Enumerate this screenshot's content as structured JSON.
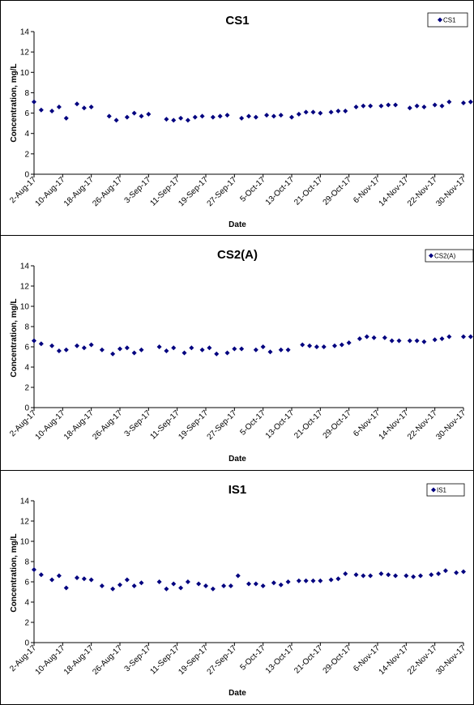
{
  "chart_data": [
    {
      "type": "scatter",
      "title": "CS1",
      "xlabel": "Date",
      "ylabel": "Concentration, mg/L",
      "ylim": [
        0,
        14
      ],
      "yticks": [
        0,
        2,
        4,
        6,
        8,
        10,
        12,
        14
      ],
      "xticks": [
        "2-Aug-17",
        "10-Aug-17",
        "18-Aug-17",
        "26-Aug-17",
        "3-Sep-17",
        "11-Sep-17",
        "19-Sep-17",
        "27-Sep-17",
        "5-Oct-17",
        "13-Oct-17",
        "21-Oct-17",
        "29-Oct-17",
        "6-Nov-17",
        "14-Nov-17",
        "22-Nov-17",
        "30-Nov-17"
      ],
      "xlim": [
        "2-Aug-17",
        "30-Nov-17"
      ],
      "legend": "top-right",
      "grid": false,
      "marker_color": "#00007f",
      "series": [
        {
          "name": "CS1",
          "x": [
            "2-Aug-17",
            "4-Aug-17",
            "7-Aug-17",
            "9-Aug-17",
            "11-Aug-17",
            "14-Aug-17",
            "16-Aug-17",
            "18-Aug-17",
            "23-Aug-17",
            "25-Aug-17",
            "28-Aug-17",
            "30-Aug-17",
            "1-Sep-17",
            "3-Sep-17",
            "8-Sep-17",
            "10-Sep-17",
            "12-Sep-17",
            "14-Sep-17",
            "16-Sep-17",
            "18-Sep-17",
            "21-Sep-17",
            "23-Sep-17",
            "25-Sep-17",
            "29-Sep-17",
            "1-Oct-17",
            "3-Oct-17",
            "6-Oct-17",
            "8-Oct-17",
            "10-Oct-17",
            "13-Oct-17",
            "15-Oct-17",
            "17-Oct-17",
            "19-Oct-17",
            "21-Oct-17",
            "24-Oct-17",
            "26-Oct-17",
            "28-Oct-17",
            "31-Oct-17",
            "2-Nov-17",
            "4-Nov-17",
            "7-Nov-17",
            "9-Nov-17",
            "11-Nov-17",
            "15-Nov-17",
            "17-Nov-17",
            "19-Nov-17",
            "22-Nov-17",
            "24-Nov-17",
            "26-Nov-17",
            "30-Nov-17",
            "2-Dec-17"
          ],
          "y": [
            7.1,
            6.3,
            6.2,
            6.6,
            5.5,
            6.9,
            6.5,
            6.6,
            5.7,
            5.3,
            5.6,
            6.0,
            5.7,
            5.9,
            5.4,
            5.3,
            5.5,
            5.3,
            5.6,
            5.7,
            5.6,
            5.7,
            5.8,
            5.5,
            5.7,
            5.6,
            5.8,
            5.7,
            5.8,
            5.6,
            5.9,
            6.1,
            6.1,
            6.0,
            6.1,
            6.2,
            6.2,
            6.6,
            6.7,
            6.7,
            6.7,
            6.8,
            6.8,
            6.5,
            6.7,
            6.6,
            6.8,
            6.7,
            7.1,
            7.0,
            7.1
          ]
        }
      ]
    },
    {
      "type": "scatter",
      "title": "CS2(A)",
      "xlabel": "Date",
      "ylabel": "Concentration, mg/L",
      "ylim": [
        0,
        14
      ],
      "yticks": [
        0,
        2,
        4,
        6,
        8,
        10,
        12,
        14
      ],
      "xticks": [
        "2-Aug-17",
        "10-Aug-17",
        "18-Aug-17",
        "26-Aug-17",
        "3-Sep-17",
        "11-Sep-17",
        "19-Sep-17",
        "27-Sep-17",
        "5-Oct-17",
        "13-Oct-17",
        "21-Oct-17",
        "29-Oct-17",
        "6-Nov-17",
        "14-Nov-17",
        "22-Nov-17",
        "30-Nov-17"
      ],
      "xlim": [
        "2-Aug-17",
        "30-Nov-17"
      ],
      "legend": "top-right",
      "grid": false,
      "marker_color": "#00007f",
      "series": [
        {
          "name": "CS2(A)",
          "x": [
            "2-Aug-17",
            "4-Aug-17",
            "7-Aug-17",
            "9-Aug-17",
            "11-Aug-17",
            "14-Aug-17",
            "16-Aug-17",
            "18-Aug-17",
            "21-Aug-17",
            "24-Aug-17",
            "26-Aug-17",
            "28-Aug-17",
            "30-Aug-17",
            "1-Sep-17",
            "6-Sep-17",
            "8-Sep-17",
            "10-Sep-17",
            "13-Sep-17",
            "15-Sep-17",
            "18-Sep-17",
            "20-Sep-17",
            "22-Sep-17",
            "25-Sep-17",
            "27-Sep-17",
            "29-Sep-17",
            "3-Oct-17",
            "5-Oct-17",
            "7-Oct-17",
            "10-Oct-17",
            "12-Oct-17",
            "16-Oct-17",
            "18-Oct-17",
            "20-Oct-17",
            "22-Oct-17",
            "25-Oct-17",
            "27-Oct-17",
            "29-Oct-17",
            "1-Nov-17",
            "3-Nov-17",
            "5-Nov-17",
            "8-Nov-17",
            "10-Nov-17",
            "12-Nov-17",
            "15-Nov-17",
            "17-Nov-17",
            "19-Nov-17",
            "22-Nov-17",
            "24-Nov-17",
            "26-Nov-17",
            "30-Nov-17",
            "2-Dec-17"
          ],
          "y": [
            6.6,
            6.3,
            6.1,
            5.6,
            5.7,
            6.1,
            5.9,
            6.2,
            5.7,
            5.3,
            5.8,
            5.9,
            5.4,
            5.7,
            6.0,
            5.6,
            5.9,
            5.4,
            5.9,
            5.7,
            5.9,
            5.3,
            5.4,
            5.8,
            5.8,
            5.7,
            6.0,
            5.5,
            5.7,
            5.7,
            6.2,
            6.1,
            6.0,
            6.0,
            6.1,
            6.2,
            6.4,
            6.8,
            7.0,
            6.9,
            6.9,
            6.6,
            6.6,
            6.6,
            6.6,
            6.5,
            6.7,
            6.8,
            7.0,
            7.0,
            7.0
          ]
        }
      ]
    },
    {
      "type": "scatter",
      "title": "IS1",
      "xlabel": "Date",
      "ylabel": "Concentration, mg/L",
      "ylim": [
        0,
        14
      ],
      "yticks": [
        0,
        2,
        4,
        6,
        8,
        10,
        12,
        14
      ],
      "xticks": [
        "2-Aug-17",
        "10-Aug-17",
        "18-Aug-17",
        "26-Aug-17",
        "3-Sep-17",
        "11-Sep-17",
        "19-Sep-17",
        "27-Sep-17",
        "5-Oct-17",
        "13-Oct-17",
        "21-Oct-17",
        "29-Oct-17",
        "6-Nov-17",
        "14-Nov-17",
        "22-Nov-17",
        "30-Nov-17"
      ],
      "xlim": [
        "2-Aug-17",
        "30-Nov-17"
      ],
      "legend": "top-right",
      "grid": false,
      "marker_color": "#00007f",
      "series": [
        {
          "name": "IS1",
          "x": [
            "2-Aug-17",
            "4-Aug-17",
            "7-Aug-17",
            "9-Aug-17",
            "11-Aug-17",
            "14-Aug-17",
            "16-Aug-17",
            "18-Aug-17",
            "21-Aug-17",
            "24-Aug-17",
            "26-Aug-17",
            "28-Aug-17",
            "30-Aug-17",
            "1-Sep-17",
            "6-Sep-17",
            "8-Sep-17",
            "10-Sep-17",
            "12-Sep-17",
            "14-Sep-17",
            "17-Sep-17",
            "19-Sep-17",
            "21-Sep-17",
            "24-Sep-17",
            "26-Sep-17",
            "28-Sep-17",
            "1-Oct-17",
            "3-Oct-17",
            "5-Oct-17",
            "8-Oct-17",
            "10-Oct-17",
            "12-Oct-17",
            "15-Oct-17",
            "17-Oct-17",
            "19-Oct-17",
            "21-Oct-17",
            "24-Oct-17",
            "26-Oct-17",
            "28-Oct-17",
            "31-Oct-17",
            "2-Nov-17",
            "4-Nov-17",
            "7-Nov-17",
            "9-Nov-17",
            "11-Nov-17",
            "14-Nov-17",
            "16-Nov-17",
            "18-Nov-17",
            "21-Nov-17",
            "23-Nov-17",
            "25-Nov-17",
            "28-Nov-17",
            "30-Nov-17"
          ],
          "y": [
            7.2,
            6.7,
            6.2,
            6.6,
            5.4,
            6.4,
            6.3,
            6.2,
            5.6,
            5.3,
            5.7,
            6.2,
            5.6,
            5.9,
            6.0,
            5.3,
            5.8,
            5.4,
            6.0,
            5.8,
            5.6,
            5.3,
            5.6,
            5.6,
            6.6,
            5.8,
            5.8,
            5.6,
            5.9,
            5.7,
            6.0,
            6.1,
            6.1,
            6.1,
            6.1,
            6.2,
            6.3,
            6.8,
            6.7,
            6.6,
            6.6,
            6.8,
            6.7,
            6.6,
            6.6,
            6.5,
            6.6,
            6.7,
            6.8,
            7.1,
            6.9,
            7.0
          ]
        }
      ]
    }
  ]
}
